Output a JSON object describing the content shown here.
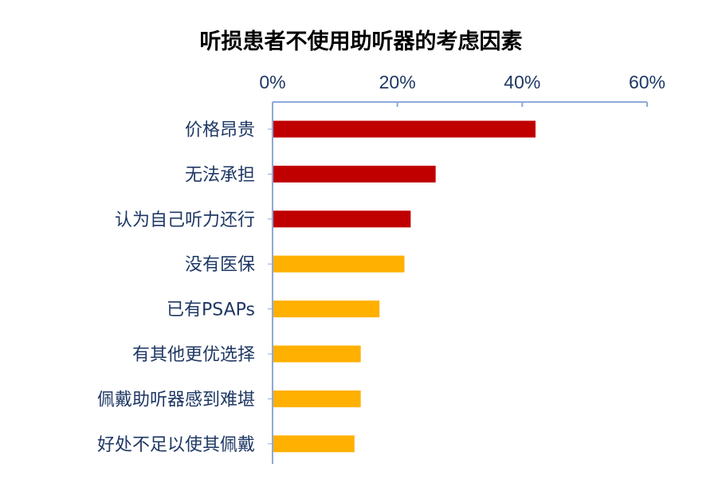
{
  "chart_data": {
    "type": "bar",
    "orientation": "horizontal",
    "title": "听损患者不使用助听器的考虑因素",
    "categories": [
      "价格昂贵",
      "无法承担",
      "认为自己听力还行",
      "没有医保",
      "已有PSAPs",
      "有其他更优选择",
      "佩戴助听器感到难堪",
      "好处不足以使其佩戴"
    ],
    "values": [
      42,
      26,
      22,
      21,
      17,
      14,
      14,
      13
    ],
    "bar_colors": [
      "#c00000",
      "#c00000",
      "#c00000",
      "#ffb000",
      "#ffb000",
      "#ffb000",
      "#ffb000",
      "#ffb000"
    ],
    "xlim": [
      0,
      60
    ],
    "x_ticks": [
      "0%",
      "20%",
      "40%",
      "60%"
    ],
    "x_tick_values": [
      0,
      20,
      40,
      60
    ],
    "axis_position": "top",
    "grid": false,
    "axis_color": "#8ea9db",
    "label_color": "#1f3864"
  }
}
